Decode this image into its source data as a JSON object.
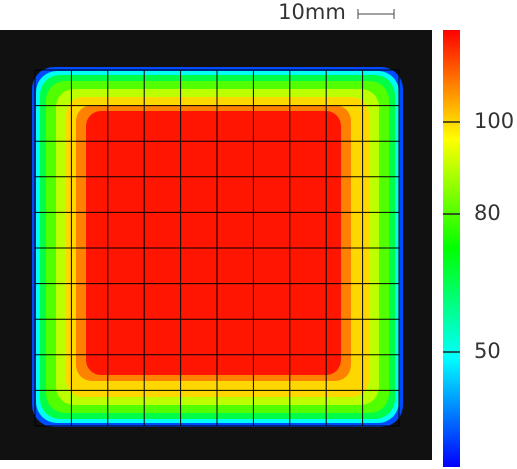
{
  "chart_data": {
    "type": "heatmap",
    "scale_label": "10mm",
    "contour_levels": [
      32,
      50,
      66,
      80,
      90,
      100,
      108,
      118
    ],
    "clim": [
      25,
      120
    ],
    "colorbar_ticks": [
      50,
      80,
      100
    ]
  }
}
